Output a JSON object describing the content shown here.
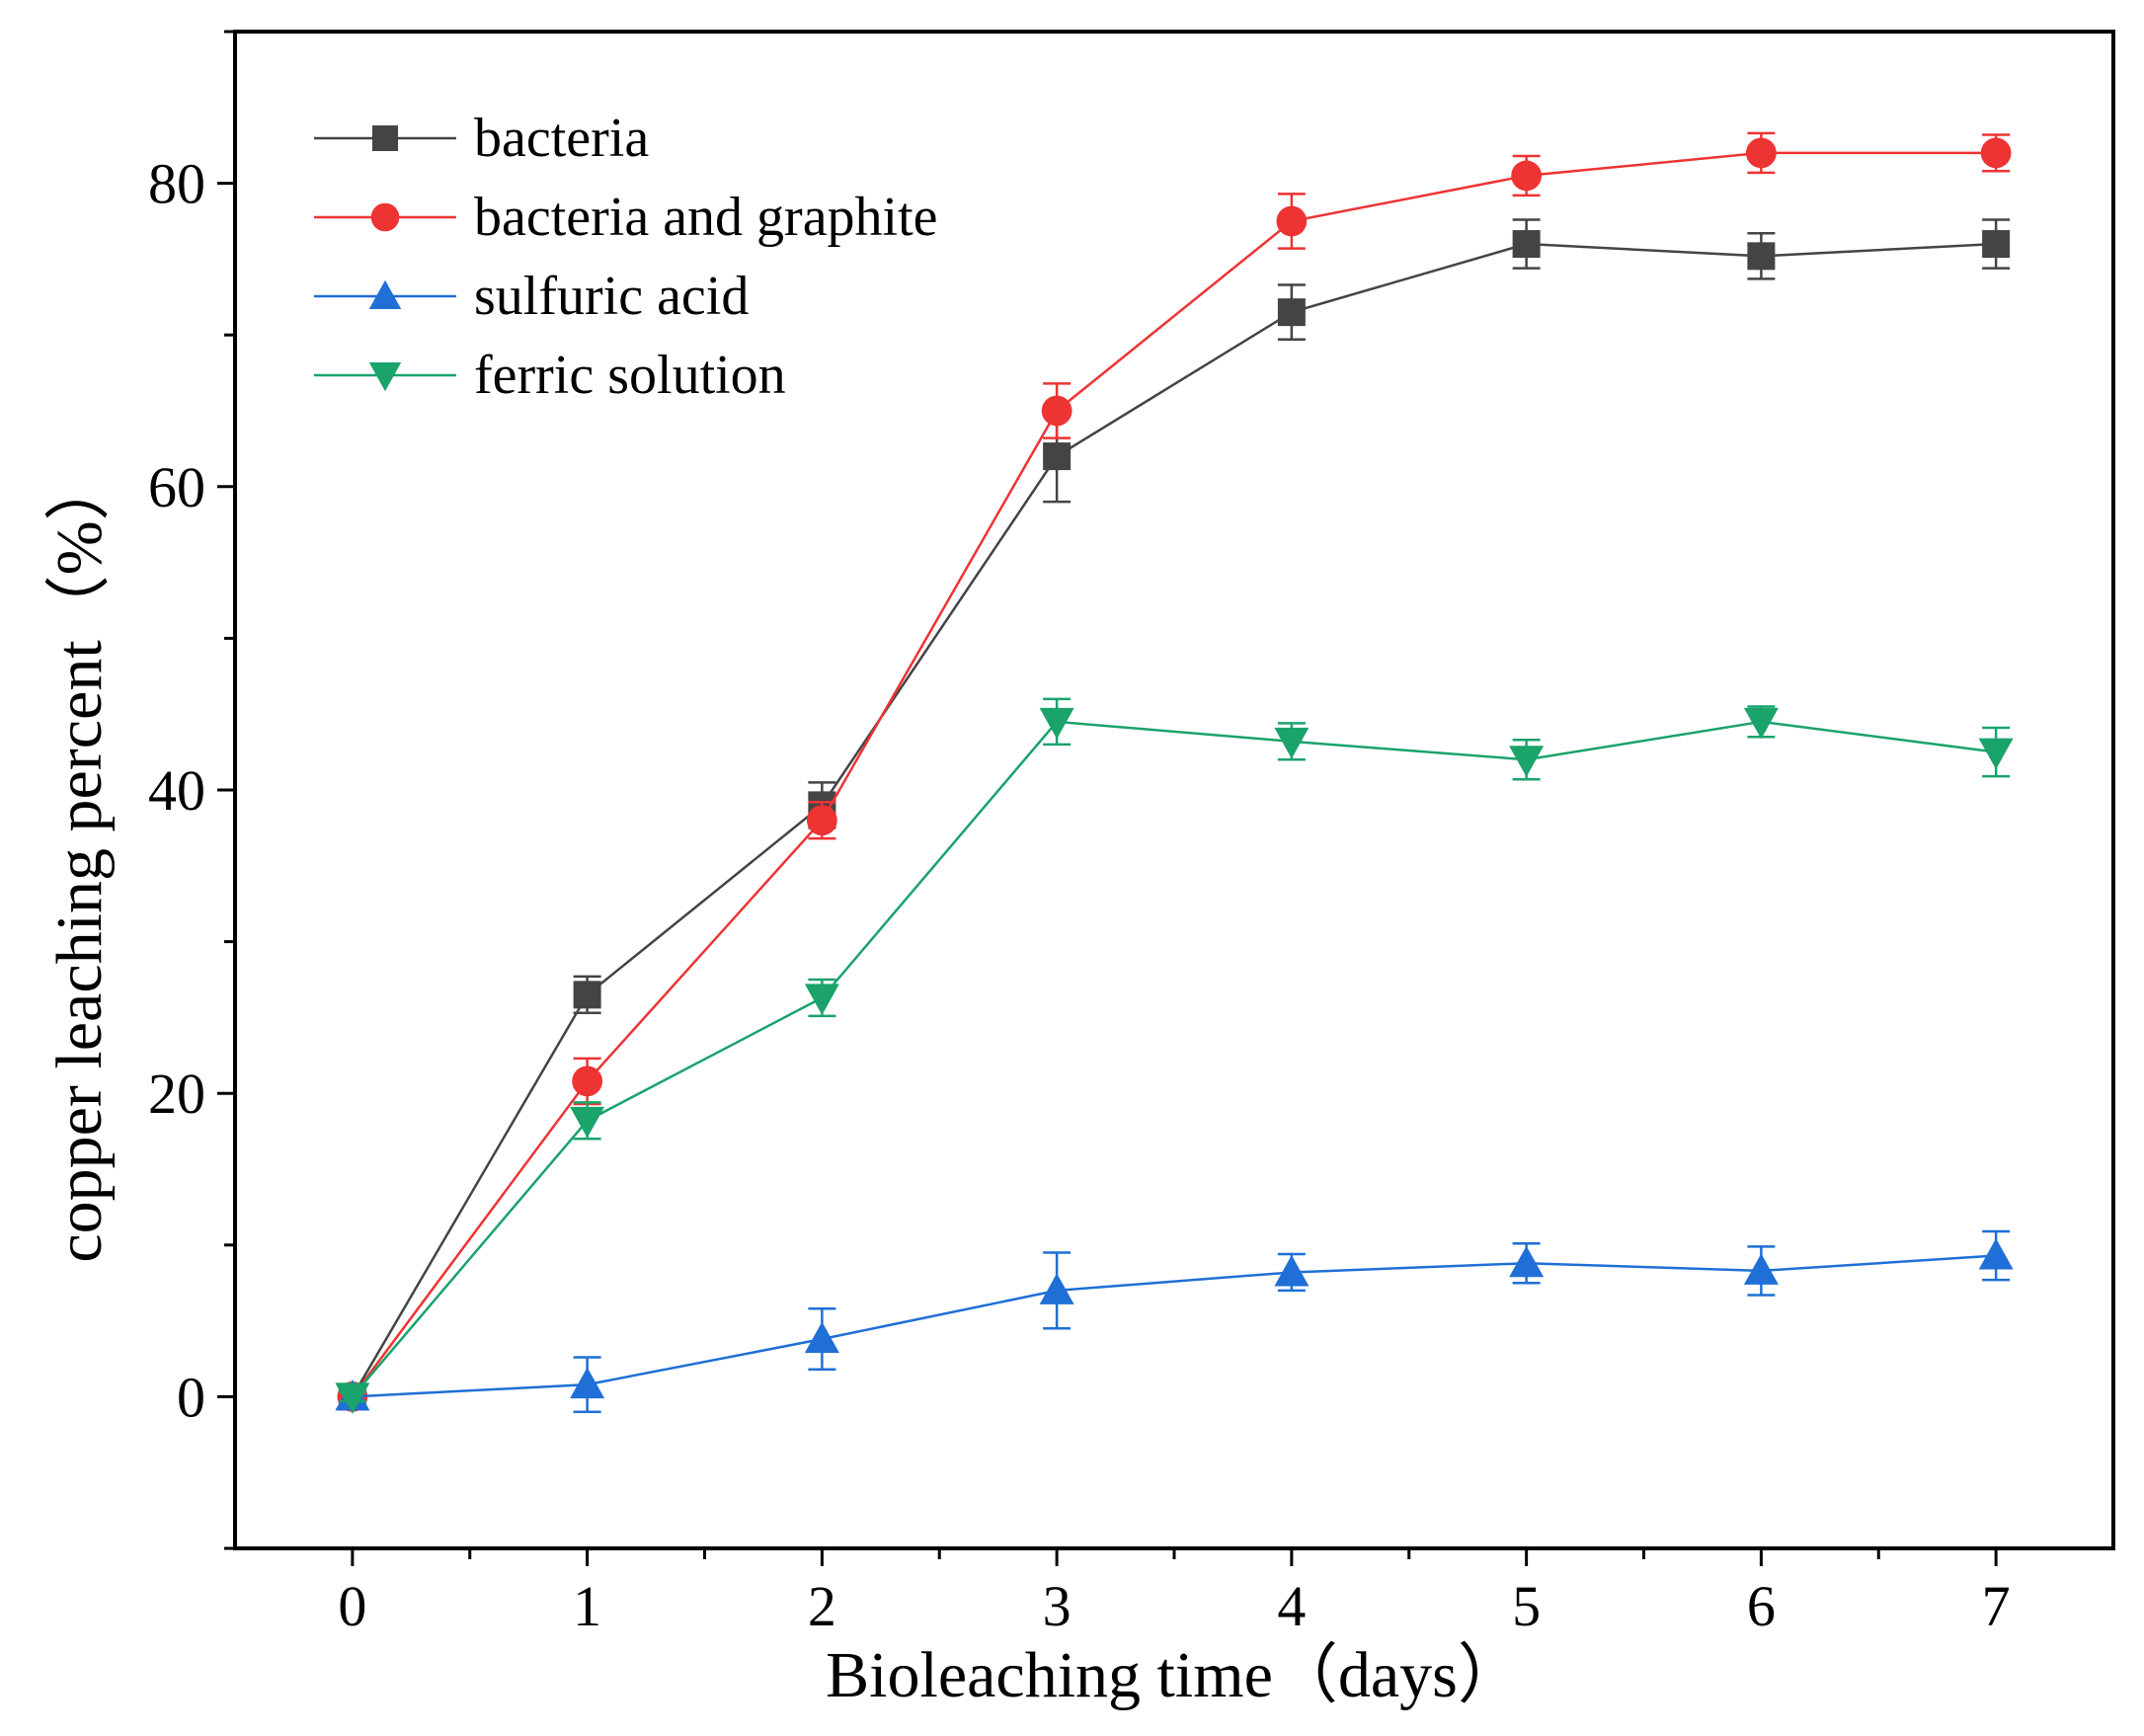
{
  "chart_data": {
    "type": "line",
    "title": "",
    "xlabel": "Bioleaching time（days）",
    "ylabel": "copper leaching percent（%）",
    "xlim": [
      -0.5,
      7.5
    ],
    "ylim": [
      -10,
      90
    ],
    "x": [
      0,
      1,
      2,
      3,
      4,
      5,
      6,
      7
    ],
    "x_tick_labels": [
      "0",
      "1",
      "2",
      "3",
      "4",
      "5",
      "6",
      "7"
    ],
    "y_ticks": [
      0,
      20,
      40,
      60,
      80
    ],
    "y_tick_labels": [
      "0",
      "20",
      "40",
      "60",
      "80"
    ],
    "legend_position": "top-left",
    "series": [
      {
        "name": "bacteria",
        "color": "#444444",
        "marker": "square",
        "values": [
          0,
          26.5,
          39,
          62,
          71.5,
          76,
          75.2,
          76
        ],
        "errors": [
          0.5,
          1.2,
          1.5,
          3,
          1.8,
          1.6,
          1.5,
          1.6
        ]
      },
      {
        "name": "bacteria and graphite",
        "color": "#ee3333",
        "marker": "circle",
        "values": [
          0,
          20.8,
          38,
          65,
          77.5,
          80.5,
          82,
          82
        ],
        "errors": [
          0.5,
          1.5,
          1.2,
          1.8,
          1.8,
          1.3,
          1.3,
          1.2
        ]
      },
      {
        "name": "sulfuric acid",
        "color": "#1f6fd6",
        "marker": "triangle-up",
        "values": [
          0,
          0.8,
          3.8,
          7,
          8.2,
          8.8,
          8.3,
          9.3
        ],
        "errors": [
          0.3,
          1.8,
          2,
          2.5,
          1.2,
          1.3,
          1.6,
          1.6
        ]
      },
      {
        "name": "ferric solution",
        "color": "#1aa36b",
        "marker": "triangle-down",
        "values": [
          0,
          18.2,
          26.3,
          44.5,
          43.2,
          42,
          44.5,
          42.5
        ],
        "errors": [
          0.3,
          1.2,
          1.2,
          1.5,
          1.2,
          1.3,
          1,
          1.6
        ]
      }
    ]
  }
}
